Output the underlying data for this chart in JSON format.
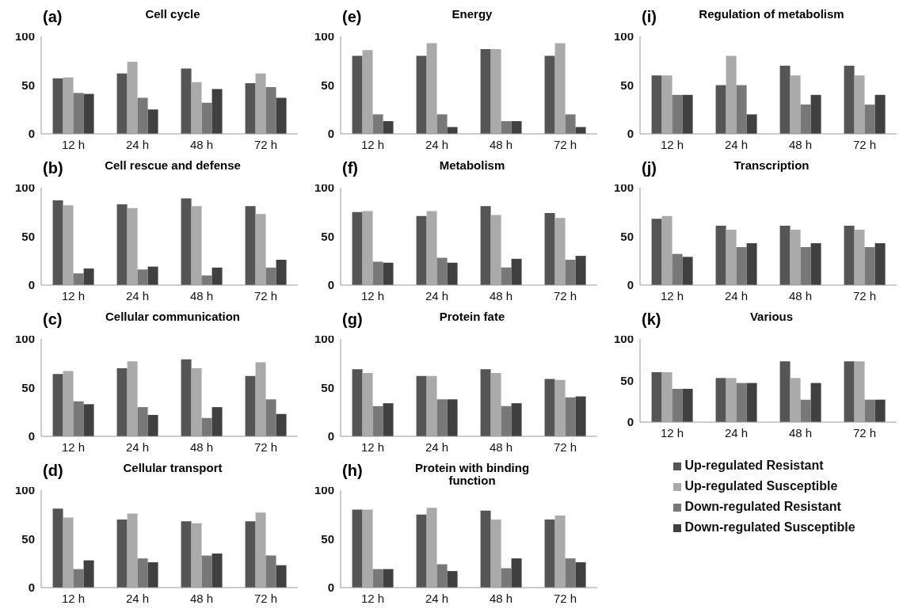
{
  "chart_data": [
    {
      "type": "bar",
      "title": "Cell cycle",
      "annotations": [
        "(a)"
      ],
      "categories": [
        "12 h",
        "24 h",
        "48 h",
        "72 h"
      ],
      "ylim": [
        0,
        100
      ],
      "yticks": [
        0,
        50,
        100
      ],
      "grid": false,
      "legend": false,
      "series": [
        {
          "color": "#555555",
          "values": [
            57,
            62,
            67,
            52
          ]
        },
        {
          "color": "#aaaaaa",
          "values": [
            58,
            74,
            53,
            62
          ]
        },
        {
          "color": "#787878",
          "values": [
            42,
            37,
            32,
            48
          ]
        },
        {
          "color": "#404040",
          "values": [
            41,
            25,
            46,
            37
          ]
        }
      ]
    },
    {
      "type": "bar",
      "title": "Cell rescue and defense",
      "annotations": [
        "(b)"
      ],
      "categories": [
        "12 h",
        "24 h",
        "48 h",
        "72 h"
      ],
      "ylim": [
        0,
        100
      ],
      "yticks": [
        0,
        50,
        100
      ],
      "grid": false,
      "legend": false,
      "series": [
        {
          "color": "#555555",
          "values": [
            87,
            83,
            89,
            81
          ]
        },
        {
          "color": "#aaaaaa",
          "values": [
            82,
            79,
            81,
            73
          ]
        },
        {
          "color": "#787878",
          "values": [
            12,
            16,
            10,
            18
          ]
        },
        {
          "color": "#404040",
          "values": [
            17,
            19,
            18,
            26
          ]
        }
      ]
    },
    {
      "type": "bar",
      "title": "Cellular communication",
      "annotations": [
        "(c)"
      ],
      "categories": [
        "12 h",
        "24 h",
        "48 h",
        "72 h"
      ],
      "ylim": [
        0,
        100
      ],
      "yticks": [
        0,
        50,
        100
      ],
      "grid": false,
      "legend": false,
      "series": [
        {
          "color": "#555555",
          "values": [
            64,
            70,
            79,
            62
          ]
        },
        {
          "color": "#aaaaaa",
          "values": [
            67,
            77,
            70,
            76
          ]
        },
        {
          "color": "#787878",
          "values": [
            36,
            30,
            19,
            38
          ]
        },
        {
          "color": "#404040",
          "values": [
            33,
            22,
            30,
            23
          ]
        }
      ]
    },
    {
      "type": "bar",
      "title": "Cellular transport",
      "annotations": [
        "(d)"
      ],
      "categories": [
        "12 h",
        "24 h",
        "48 h",
        "72 h"
      ],
      "ylim": [
        0,
        100
      ],
      "yticks": [
        0,
        50,
        100
      ],
      "grid": false,
      "legend": false,
      "series": [
        {
          "color": "#555555",
          "values": [
            81,
            70,
            68,
            68
          ]
        },
        {
          "color": "#aaaaaa",
          "values": [
            72,
            76,
            66,
            77
          ]
        },
        {
          "color": "#787878",
          "values": [
            19,
            30,
            33,
            33
          ]
        },
        {
          "color": "#404040",
          "values": [
            28,
            26,
            35,
            23
          ]
        }
      ]
    },
    {
      "type": "bar",
      "title": "Energy",
      "annotations": [
        "(e)"
      ],
      "categories": [
        "12 h",
        "24 h",
        "48 h",
        "72 h"
      ],
      "ylim": [
        0,
        100
      ],
      "yticks": [
        0,
        50,
        100
      ],
      "grid": false,
      "legend": false,
      "series": [
        {
          "color": "#555555",
          "values": [
            80,
            80,
            87,
            80
          ]
        },
        {
          "color": "#aaaaaa",
          "values": [
            86,
            93,
            87,
            93
          ]
        },
        {
          "color": "#787878",
          "values": [
            20,
            20,
            13,
            20
          ]
        },
        {
          "color": "#404040",
          "values": [
            13,
            7,
            13,
            7
          ]
        }
      ]
    },
    {
      "type": "bar",
      "title": "Metabolism",
      "annotations": [
        "(f)"
      ],
      "categories": [
        "12 h",
        "24 h",
        "48 h",
        "72 h"
      ],
      "ylim": [
        0,
        100
      ],
      "yticks": [
        0,
        50,
        100
      ],
      "grid": false,
      "legend": false,
      "series": [
        {
          "color": "#555555",
          "values": [
            75,
            71,
            81,
            74
          ]
        },
        {
          "color": "#aaaaaa",
          "values": [
            76,
            76,
            72,
            69
          ]
        },
        {
          "color": "#787878",
          "values": [
            24,
            28,
            18,
            26
          ]
        },
        {
          "color": "#404040",
          "values": [
            23,
            23,
            27,
            30
          ]
        }
      ]
    },
    {
      "type": "bar",
      "title": "Protein fate",
      "annotations": [
        "(g)"
      ],
      "categories": [
        "12 h",
        "24 h",
        "48 h",
        "72 h"
      ],
      "ylim": [
        0,
        100
      ],
      "yticks": [
        0,
        50,
        100
      ],
      "grid": false,
      "legend": false,
      "series": [
        {
          "color": "#555555",
          "values": [
            69,
            62,
            69,
            59
          ]
        },
        {
          "color": "#aaaaaa",
          "values": [
            65,
            62,
            65,
            58
          ]
        },
        {
          "color": "#787878",
          "values": [
            31,
            38,
            31,
            40
          ]
        },
        {
          "color": "#404040",
          "values": [
            34,
            38,
            34,
            41
          ]
        }
      ]
    },
    {
      "type": "bar",
      "title": "Protein with binding function",
      "annotations": [
        "(h)"
      ],
      "categories": [
        "12 h",
        "24 h",
        "48 h",
        "72 h"
      ],
      "ylim": [
        0,
        100
      ],
      "yticks": [
        0,
        50,
        100
      ],
      "grid": false,
      "legend": false,
      "series": [
        {
          "color": "#555555",
          "values": [
            80,
            75,
            79,
            70
          ]
        },
        {
          "color": "#aaaaaa",
          "values": [
            80,
            82,
            70,
            74
          ]
        },
        {
          "color": "#787878",
          "values": [
            19,
            24,
            20,
            30
          ]
        },
        {
          "color": "#404040",
          "values": [
            19,
            17,
            30,
            26
          ]
        }
      ]
    },
    {
      "type": "bar",
      "title": "Regulation of metabolism",
      "annotations": [
        "(i)"
      ],
      "categories": [
        "12 h",
        "24 h",
        "48 h",
        "72 h"
      ],
      "ylim": [
        0,
        100
      ],
      "yticks": [
        0,
        50,
        100
      ],
      "grid": false,
      "legend": false,
      "series": [
        {
          "color": "#555555",
          "values": [
            60,
            50,
            70,
            70
          ]
        },
        {
          "color": "#aaaaaa",
          "values": [
            60,
            80,
            60,
            60
          ]
        },
        {
          "color": "#787878",
          "values": [
            40,
            50,
            30,
            30
          ]
        },
        {
          "color": "#404040",
          "values": [
            40,
            20,
            40,
            40
          ]
        }
      ]
    },
    {
      "type": "bar",
      "title": "Transcription",
      "annotations": [
        "(j)"
      ],
      "categories": [
        "12 h",
        "24 h",
        "48 h",
        "72 h"
      ],
      "ylim": [
        0,
        100
      ],
      "yticks": [
        0,
        50,
        100
      ],
      "grid": false,
      "legend": false,
      "series": [
        {
          "color": "#555555",
          "values": [
            68,
            61,
            61,
            61
          ]
        },
        {
          "color": "#aaaaaa",
          "values": [
            71,
            57,
            57,
            57
          ]
        },
        {
          "color": "#787878",
          "values": [
            32,
            39,
            39,
            39
          ]
        },
        {
          "color": "#404040",
          "values": [
            29,
            43,
            43,
            43
          ]
        }
      ]
    },
    {
      "type": "bar",
      "title": "Various",
      "annotations": [
        "(k)"
      ],
      "categories": [
        "12 h",
        "24 h",
        "48 h",
        "72 h"
      ],
      "ylim": [
        0,
        100
      ],
      "yticks": [
        0,
        50,
        100
      ],
      "grid": false,
      "legend": "bottom",
      "series": [
        {
          "name": "Up-regulated Resistant",
          "color": "#555555",
          "values": [
            60,
            53,
            73,
            73
          ]
        },
        {
          "name": "Up-regulated Susceptible",
          "color": "#aaaaaa",
          "values": [
            60,
            53,
            53,
            73
          ]
        },
        {
          "name": "Down-regulated Resistant",
          "color": "#787878",
          "values": [
            40,
            47,
            27,
            27
          ]
        },
        {
          "name": "Down-regulated Susceptible",
          "color": "#404040",
          "values": [
            40,
            47,
            47,
            27
          ]
        }
      ]
    }
  ]
}
